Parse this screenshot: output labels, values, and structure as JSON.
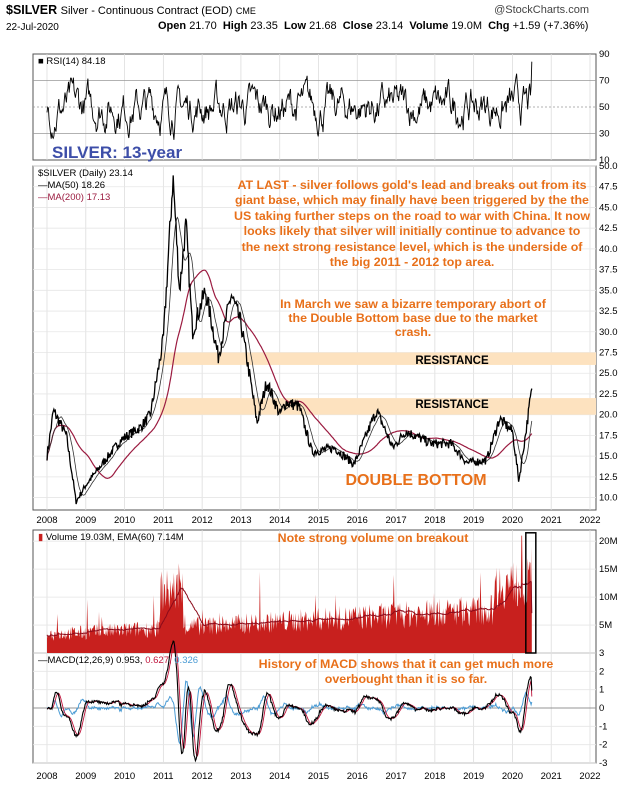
{
  "header": {
    "ticker": "$SILVER",
    "name": "Silver - Continuous Contract (EOD)",
    "exchange": "CME",
    "date": "22-Jul-2020",
    "open_label": "Open",
    "open": "21.70",
    "high_label": "High",
    "high": "23.35",
    "low_label": "Low",
    "low": "21.68",
    "close_label": "Close",
    "close": "23.14",
    "volume_label": "Volume",
    "volume": "19.0M",
    "chg_label": "Chg",
    "chg": "+1.59 (+7.36%)",
    "brand": "@StockCharts.com"
  },
  "rsi_panel": {
    "legend": "RSI(14) 84.18",
    "ticks": [
      "90",
      "70",
      "50",
      "30",
      "10"
    ],
    "title_overlay": "SILVER: 13-year"
  },
  "price_panel": {
    "legend_main": "$SILVER (Daily) 23.14",
    "legend_ma50": "MA(50) 18.26",
    "legend_ma200": "MA(200) 17.13",
    "ticks": [
      "50.0",
      "47.5",
      "45.0",
      "42.5",
      "40.0",
      "37.5",
      "35.0",
      "32.5",
      "30.0",
      "27.5",
      "25.0",
      "22.5",
      "20.0",
      "17.5",
      "15.0",
      "12.5",
      "10.0"
    ],
    "resistance_label_1": "RESISTANCE",
    "resistance_label_2": "RESISTANCE",
    "double_bottom_label": "DOUBLE BOTTOM",
    "annotation_1": "AT LAST - silver follows gold's lead and breaks out from its giant base, which may finally have been triggered by the the US taking further steps on the road to war with China. It now looks likely that silver will initially continue to advance to the next strong resistance level, which is the underside of the big 2011 - 2012 top area.",
    "annotation_2": "In March we saw a bizarre temporary abort of the Double Bottom base due to the market crash."
  },
  "volume_panel": {
    "legend_volume": "Volume 19.03M,",
    "legend_ema": "EMA(60) 7.14M",
    "ticks": [
      "20M",
      "15M",
      "10M",
      "5M"
    ],
    "annotation": "Note strong volume on breakout"
  },
  "macd_panel": {
    "legend_label": "MACD(12,26,9)",
    "legend_macd": "0.953,",
    "legend_signal": "0.627,",
    "legend_hist": "0.326",
    "ticks": [
      "3",
      "2",
      "1",
      "0",
      "-1",
      "-2",
      "-3"
    ],
    "annotation": "History of MACD shows that it can get much more overbought than it is so far."
  },
  "x_axis": {
    "years": [
      "2008",
      "2009",
      "2010",
      "2011",
      "2012",
      "2013",
      "2014",
      "2015",
      "2016",
      "2017",
      "2018",
      "2019",
      "2020",
      "2021",
      "2022"
    ]
  },
  "colors": {
    "price_line": "#000000",
    "ma50": "#000000",
    "ma200": "#9b1b40",
    "volume_bars": "#c8201e",
    "resistance_band": "#fde2bf",
    "annotation_text": "#e8701a",
    "title_overlay": "#3d4ea8",
    "macd_signal": "#c0143c",
    "macd_hist": "#4a9bd4"
  },
  "chart_data": [
    {
      "type": "line",
      "title": "RSI(14)",
      "ylim": [
        10,
        90
      ],
      "series": [
        {
          "name": "RSI(14)",
          "last": 84.18
        }
      ]
    },
    {
      "type": "line",
      "title": "$SILVER (Daily)",
      "x_range": [
        "2007-11",
        "2020-07"
      ],
      "ylim": [
        8.5,
        50
      ],
      "series": [
        {
          "name": "$SILVER (Daily)",
          "points": [
            [
              "2008-01",
              15
            ],
            [
              "2008-03",
              20.5
            ],
            [
              "2008-07",
              17.5
            ],
            [
              "2008-10",
              9.5
            ],
            [
              "2009-01",
              11.5
            ],
            [
              "2009-06",
              14
            ],
            [
              "2009-12",
              17
            ],
            [
              "2010-06",
              18.5
            ],
            [
              "2010-09",
              20
            ],
            [
              "2011-01",
              29
            ],
            [
              "2011-04",
              48.7
            ],
            [
              "2011-06",
              35
            ],
            [
              "2011-08",
              43
            ],
            [
              "2011-10",
              30
            ],
            [
              "2012-02",
              35
            ],
            [
              "2012-06",
              27
            ],
            [
              "2012-10",
              34.5
            ],
            [
              "2013-01",
              31
            ],
            [
              "2013-04",
              24
            ],
            [
              "2013-06",
              19
            ],
            [
              "2013-09",
              24
            ],
            [
              "2014-01",
              20
            ],
            [
              "2014-03",
              21.5
            ],
            [
              "2014-07",
              21
            ],
            [
              "2014-11",
              15.5
            ],
            [
              "2015-06",
              16
            ],
            [
              "2015-12",
              14
            ],
            [
              "2016-07",
              20.5
            ],
            [
              "2016-12",
              16
            ],
            [
              "2017-04",
              18
            ],
            [
              "2017-12",
              16.5
            ],
            [
              "2018-06",
              16.5
            ],
            [
              "2018-11",
              14.2
            ],
            [
              "2019-05",
              14.5
            ],
            [
              "2019-09",
              19.5
            ],
            [
              "2020-01",
              18
            ],
            [
              "2020-03",
              12
            ],
            [
              "2020-05",
              17.5
            ],
            [
              "2020-07",
              23.14
            ]
          ]
        },
        {
          "name": "MA(50)",
          "last": 18.26
        },
        {
          "name": "MA(200)",
          "last": 17.13
        }
      ],
      "bands": [
        {
          "label": "RESISTANCE",
          "y": [
            26,
            27.5
          ]
        },
        {
          "label": "RESISTANCE",
          "y": [
            20,
            22
          ]
        }
      ]
    },
    {
      "type": "bar",
      "title": "Volume",
      "ylim": [
        0,
        22
      ],
      "series": [
        {
          "name": "Volume",
          "last_m": 19.03
        },
        {
          "name": "EMA(60)",
          "last_m": 7.14
        }
      ]
    },
    {
      "type": "line",
      "title": "MACD(12,26,9)",
      "ylim": [
        -3,
        3
      ],
      "series": [
        {
          "name": "MACD",
          "last": 0.953
        },
        {
          "name": "Signal",
          "last": 0.627
        },
        {
          "name": "Histogram",
          "last": 0.326
        }
      ]
    }
  ]
}
